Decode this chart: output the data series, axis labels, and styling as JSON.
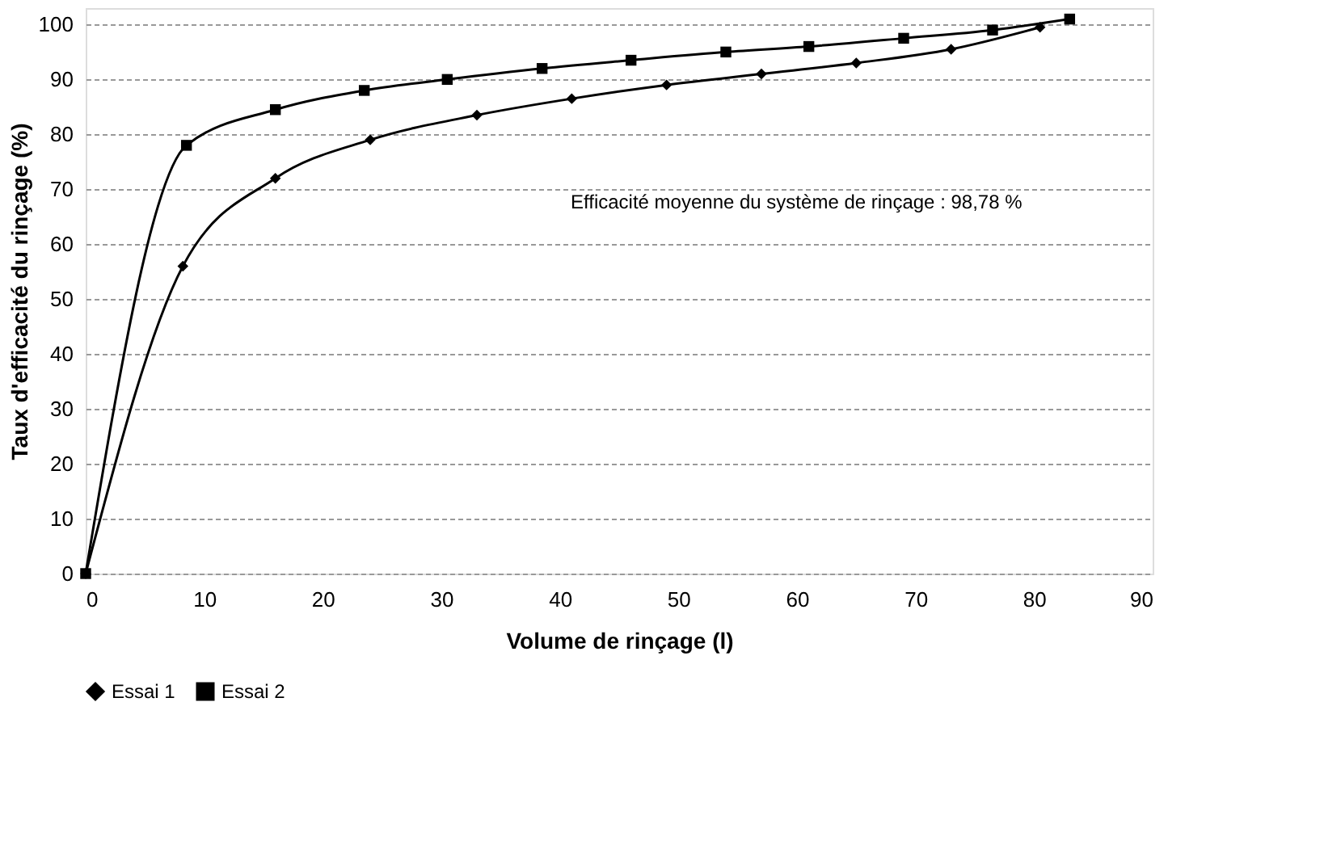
{
  "chart_data": {
    "type": "line",
    "xlabel": "Volume de rinçage (l)",
    "ylabel": "Taux d'efficacité du rinçage (%)",
    "xlim": [
      0,
      90
    ],
    "xticks": [
      0,
      10,
      20,
      30,
      40,
      50,
      60,
      70,
      80,
      90
    ],
    "ylim": [
      0,
      103
    ],
    "yticks": [
      0,
      10,
      20,
      30,
      40,
      50,
      60,
      70,
      80,
      90,
      100
    ],
    "grid": "y",
    "legend": "bottom",
    "annotations": [
      "Efficacité moyenne du système de rinçage : 98,78 %"
    ],
    "series": [
      {
        "name": "Essai 1",
        "color": "#000000",
        "marker": "diamond",
        "x": [
          0,
          8.2,
          16,
          24,
          33,
          41,
          49,
          57,
          65,
          73,
          80.5
        ],
        "values": [
          0,
          56,
          72,
          79,
          83.5,
          86.5,
          89,
          91,
          93,
          95.5,
          99.5
        ]
      },
      {
        "name": "Essai 2",
        "color": "#000000",
        "marker": "square",
        "x": [
          0,
          8.5,
          16,
          23.5,
          30.5,
          38.5,
          46,
          54,
          61,
          69,
          76.5,
          83
        ],
        "values": [
          0,
          78,
          84.5,
          88,
          90,
          92,
          93.5,
          95,
          96,
          97.5,
          99,
          101
        ]
      }
    ]
  }
}
